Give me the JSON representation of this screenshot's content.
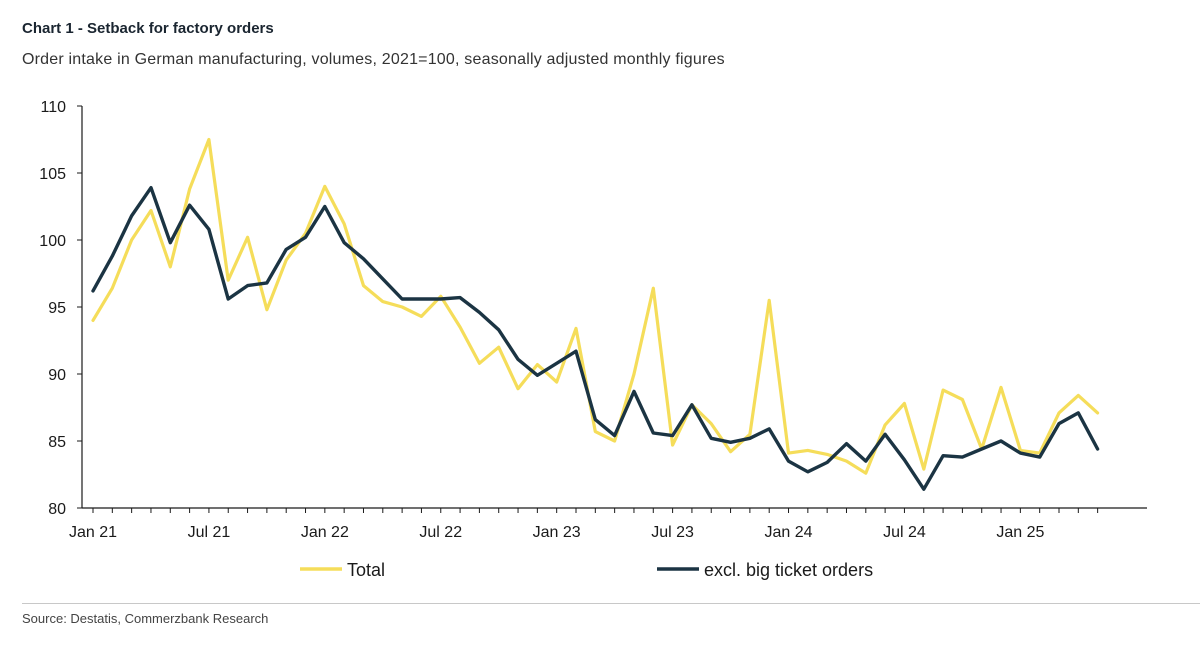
{
  "header": {
    "title": "Chart 1 - Setback for factory orders",
    "subtitle": "Order intake in German manufacturing, volumes, 2021=100, seasonally adjusted monthly figures"
  },
  "footer": {
    "source": "Source: Destatis, Commerzbank Research"
  },
  "chart_data": {
    "type": "line",
    "title": "Chart 1 - Setback for factory orders",
    "subtitle": "Order intake in German manufacturing, volumes, 2021=100, seasonally adjusted monthly figures",
    "xlabel": "",
    "ylabel": "",
    "ylim": [
      80,
      110
    ],
    "yticks": [
      80,
      85,
      90,
      95,
      100,
      105,
      110
    ],
    "xticks": [
      {
        "index": 0,
        "label": "Jan 21"
      },
      {
        "index": 6,
        "label": "Jul 21"
      },
      {
        "index": 12,
        "label": "Jan 22"
      },
      {
        "index": 18,
        "label": "Jul 22"
      },
      {
        "index": 24,
        "label": "Jan 23"
      },
      {
        "index": 30,
        "label": "Jul 23"
      },
      {
        "index": 36,
        "label": "Jan 24"
      },
      {
        "index": 42,
        "label": "Jul 24"
      },
      {
        "index": 48,
        "label": "Jan 25"
      }
    ],
    "n_points": 53,
    "grid": false,
    "legend_position": "bottom",
    "series": [
      {
        "name": "Total",
        "color": "#f5dd5a",
        "values": [
          94.0,
          96.4,
          100.0,
          102.2,
          98.0,
          103.8,
          107.5,
          97.0,
          100.2,
          94.8,
          98.5,
          100.5,
          104.0,
          101.2,
          96.6,
          95.4,
          95.0,
          94.3,
          95.8,
          93.5,
          90.8,
          92.0,
          88.9,
          90.7,
          89.4,
          93.4,
          85.7,
          85.0,
          90.0,
          96.4,
          84.7,
          87.7,
          86.3,
          84.2,
          85.5,
          95.5,
          84.1,
          84.3,
          84.0,
          83.5,
          82.6,
          86.2,
          87.8,
          82.9,
          88.8,
          88.1,
          84.4,
          89.0,
          84.3,
          84.1,
          87.1,
          88.4,
          87.1
        ]
      },
      {
        "name": "excl. big ticket orders",
        "color": "#1b3443",
        "values": [
          96.2,
          98.8,
          101.8,
          103.9,
          99.8,
          102.6,
          100.8,
          95.6,
          96.6,
          96.8,
          99.3,
          100.2,
          102.5,
          99.8,
          98.6,
          97.1,
          95.6,
          95.6,
          95.6,
          95.7,
          94.6,
          93.3,
          91.1,
          89.9,
          90.8,
          91.7,
          86.6,
          85.4,
          88.7,
          85.6,
          85.4,
          87.7,
          85.2,
          84.9,
          85.2,
          85.9,
          83.5,
          82.7,
          83.4,
          84.8,
          83.5,
          85.5,
          83.6,
          81.4,
          83.9,
          83.8,
          84.4,
          85.0,
          84.1,
          83.8,
          86.3,
          87.1,
          84.4
        ]
      }
    ]
  }
}
